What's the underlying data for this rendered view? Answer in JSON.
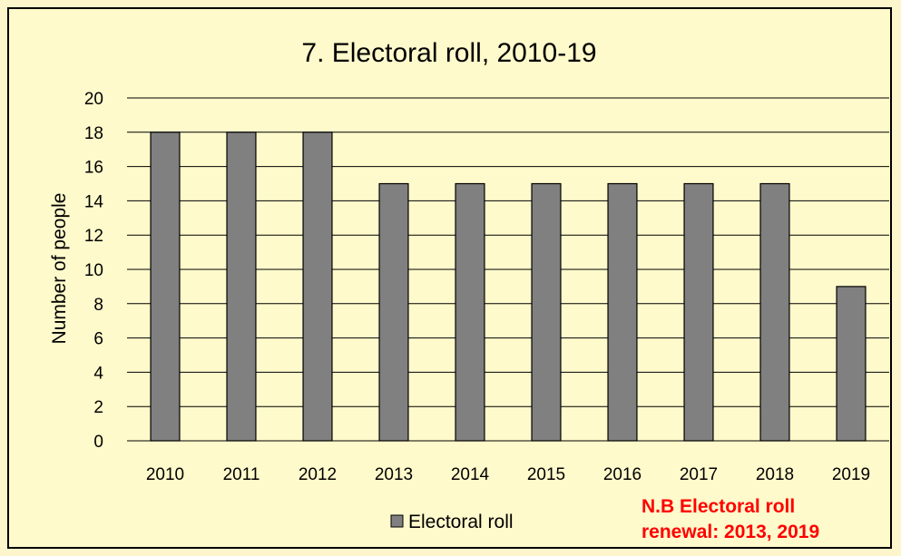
{
  "chart_data": {
    "type": "bar",
    "title": "7. Electoral roll, 2010-19",
    "xlabel": "",
    "ylabel": "Number of people",
    "categories": [
      "2010",
      "2011",
      "2012",
      "2013",
      "2014",
      "2015",
      "2016",
      "2017",
      "2018",
      "2019"
    ],
    "series": [
      {
        "name": "Electoral roll",
        "values": [
          18,
          18,
          18,
          15,
          15,
          15,
          15,
          15,
          15,
          9
        ],
        "color": "#808080"
      }
    ],
    "ylim": [
      0,
      20
    ],
    "yticks": [
      "0",
      "2",
      "4",
      "6",
      "8",
      "10",
      "12",
      "14",
      "16",
      "18",
      "20"
    ],
    "grid": true,
    "legend_position": "bottom",
    "annotation": {
      "lines": [
        "N.B Electoral roll",
        "renewal: 2013, 2019"
      ],
      "color": "#ff0000"
    }
  },
  "colors": {
    "page_background": "#fdf5cc",
    "plot_background": "#fffacb",
    "bar_fill": "#808080",
    "note": "#ff0000"
  }
}
